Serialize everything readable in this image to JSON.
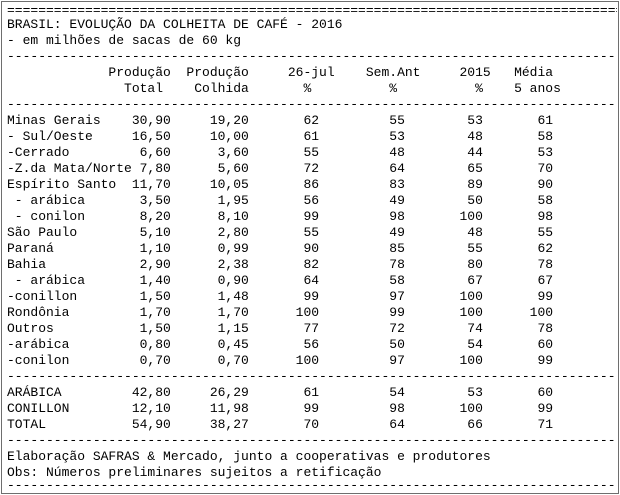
{
  "top_rule": "=================================================================================",
  "title": "BRASIL: EVOLUÇÃO DA COLHEITA DE CAFÉ - 2016",
  "subtitle": "- em milhões de sacas de 60 kg",
  "dash_rule": "---------------------------------------------------------------------------------",
  "header_line1": "             Produção  Produção     26-jul    Sem.Ant     2015   Média",
  "header_line2": "               Total    Colhida       %          %          %    5 anos",
  "rows": [
    "Minas Gerais    30,90     19,20       62         55        53       61",
    "- Sul/Oeste     16,50     10,00       61         53        48       58",
    "-Cerrado         6,60      3,60       55         48        44       53",
    "-Z.da Mata/Norte 7,80      5,60       72         64        65       70",
    "Espírito Santo  11,70     10,05       86         83        89       90",
    " - arábica       3,50      1,95       56         49        50       58",
    " - conilon       8,20      8,10       99         98       100       98",
    "São Paulo        5,10      2,80       55         49        48       55",
    "Paraná           1,10      0,99       90         85        55       62",
    "Bahia            2,90      2,38       82         78        80       78",
    " - arábica       1,40      0,90       64         58        67       67",
    "-conillon        1,50      1,48       99         97       100       99",
    "Rondônia         1,70      1,70      100         99       100      100",
    "Outros           1,50      1,15       77         72        74       78",
    "-arábica         0,80      0,45       56         50        54       60",
    "-conilon         0,70      0,70      100         97       100       99"
  ],
  "totals": [
    "ARÁBICA         42,80     26,29       61         54        53       60",
    "CONILLON        12,10     11,98       99         98       100       99",
    "TOTAL           54,90     38,27       70         64        66       71"
  ],
  "footer_line1": "Elaboração SAFRAS & Mercado, junto a cooperativas e produtores",
  "footer_line2": "Obs: Números preliminares sujeitos a retificação"
}
